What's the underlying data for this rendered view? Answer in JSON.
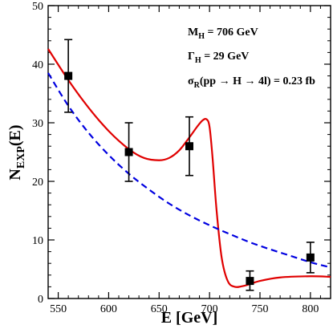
{
  "chart_data": {
    "type": "line",
    "xlabel": "E [GeV]",
    "ylabel_main": "N",
    "ylabel_sub": "EXP",
    "ylabel_tail": "(E)",
    "xlim": [
      540,
      820
    ],
    "ylim": [
      0,
      50
    ],
    "x_ticks": [
      550,
      600,
      650,
      700,
      750,
      800
    ],
    "y_ticks": [
      0,
      10,
      20,
      30,
      40,
      50
    ],
    "grid": false,
    "legend": "none",
    "annotations": [
      {
        "id": "mass",
        "main": "M",
        "sub": "H",
        "rest": " = 706 GeV"
      },
      {
        "id": "width",
        "main": "Γ",
        "sub": "H",
        "rest": " = 29 GeV"
      },
      {
        "id": "xsec",
        "main": "σ",
        "sub": "R",
        "rest": "(pp → H → 4l) = 0.23  fb"
      }
    ],
    "points": [
      {
        "x": 560,
        "y": 38,
        "yerr_low": 31.8,
        "yerr_high": 44.2
      },
      {
        "x": 620,
        "y": 25,
        "yerr_low": 20.0,
        "yerr_high": 30.0
      },
      {
        "x": 680,
        "y": 26,
        "yerr_low": 21.0,
        "yerr_high": 31.0
      },
      {
        "x": 740,
        "y": 3,
        "yerr_low": 1.4,
        "yerr_high": 4.7
      },
      {
        "x": 800,
        "y": 7,
        "yerr_low": 4.4,
        "yerr_high": 9.6
      }
    ],
    "series": [
      {
        "style": "solid",
        "color": "#e00000",
        "x": [
          540,
          560,
          580,
          600,
          620,
          635,
          650,
          660,
          670,
          680,
          688,
          693,
          697,
          700,
          703,
          707,
          712,
          718,
          725,
          735,
          750,
          770,
          800,
          820
        ],
        "y": [
          42.6,
          37.3,
          32.6,
          28.6,
          25.5,
          24.0,
          23.6,
          24.0,
          25.3,
          27.5,
          29.4,
          30.4,
          30.6,
          29.3,
          24.0,
          15.0,
          7.0,
          3.0,
          2.0,
          2.2,
          3.0,
          3.6,
          3.8,
          3.7
        ]
      },
      {
        "style": "dashed",
        "color": "#0000e0",
        "x": [
          540,
          560,
          580,
          600,
          620,
          640,
          660,
          680,
          700,
          720,
          740,
          760,
          780,
          800,
          820
        ],
        "y": [
          38.5,
          32.9,
          28.3,
          24.5,
          21.3,
          18.6,
          16.2,
          14.2,
          12.5,
          11.0,
          9.6,
          8.4,
          7.3,
          6.2,
          5.3
        ]
      }
    ]
  },
  "colors": {
    "axis": "#000000",
    "marker": "#000000"
  }
}
